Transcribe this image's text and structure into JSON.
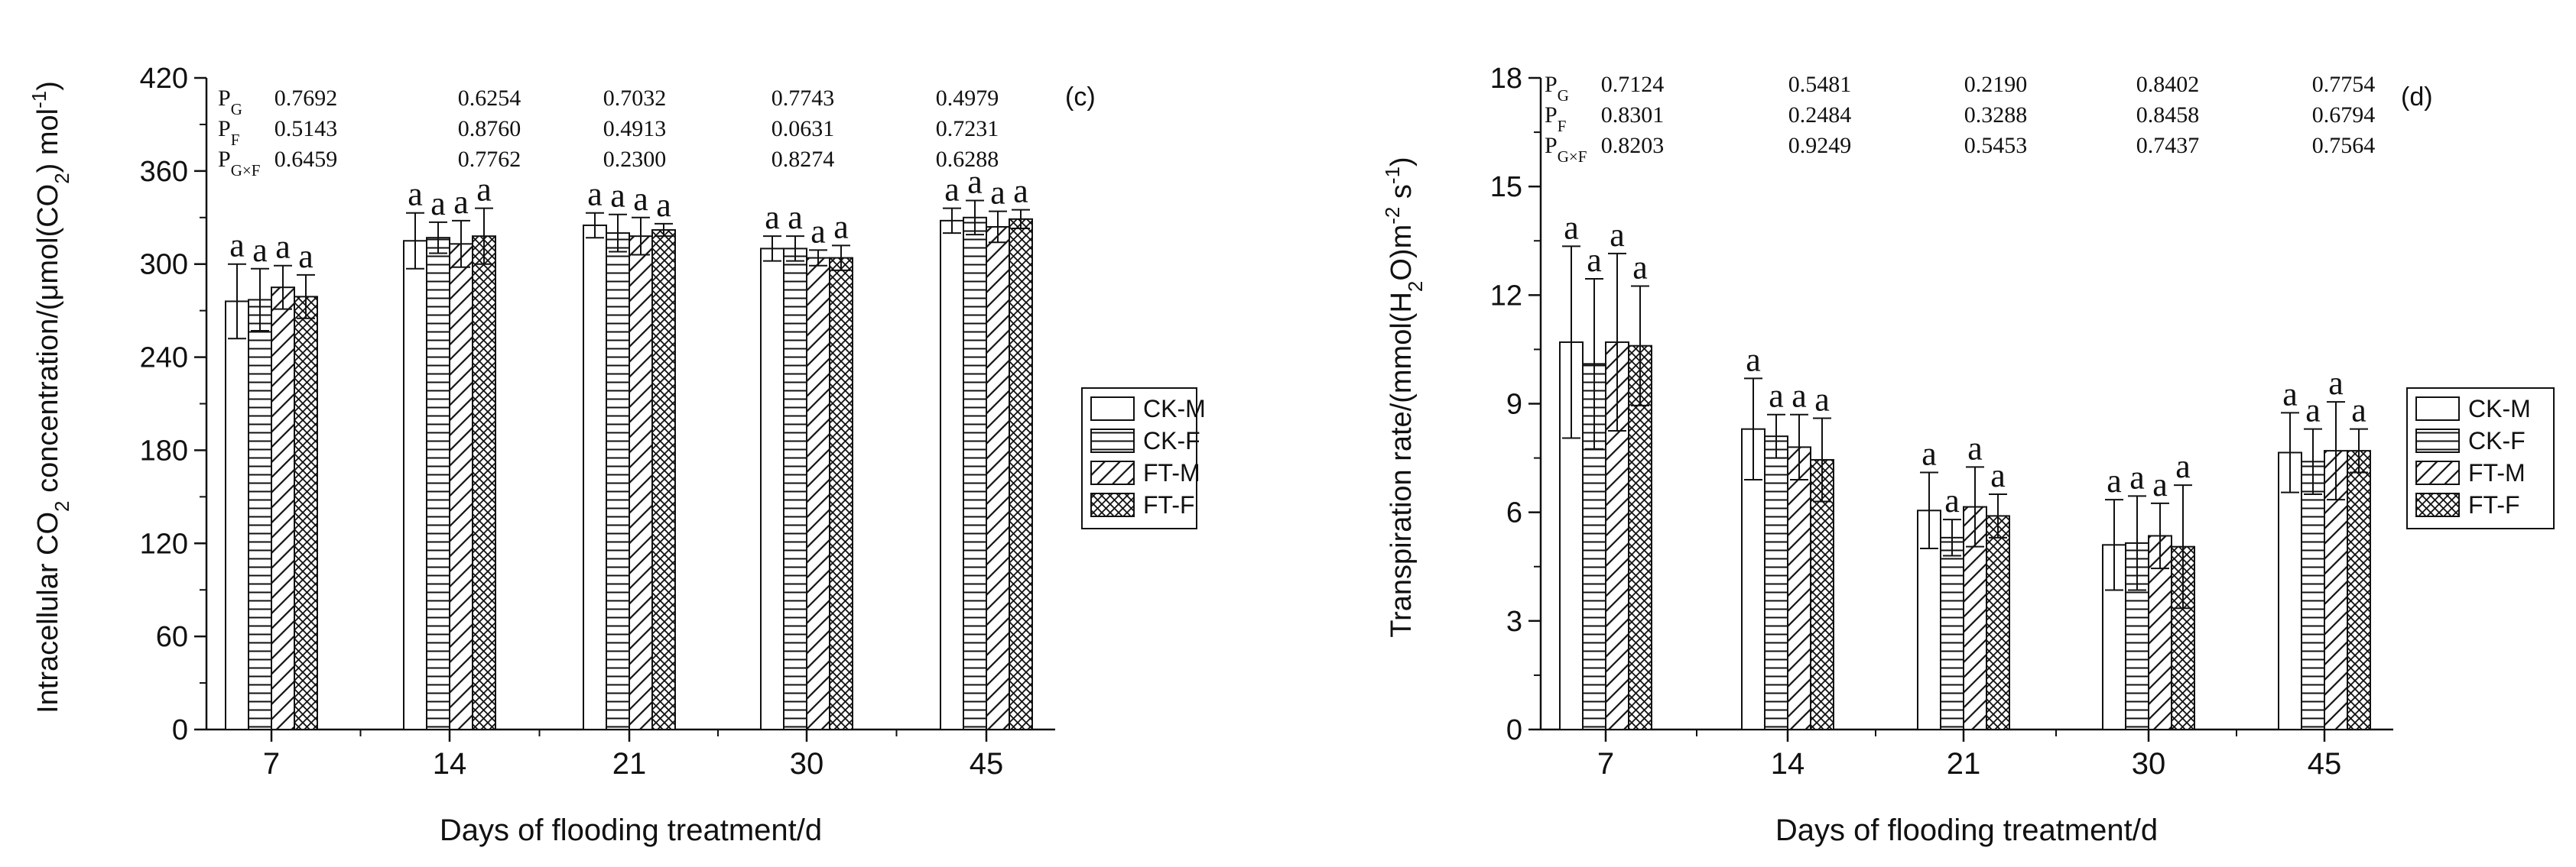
{
  "chart_data": [
    {
      "type": "bar",
      "panel_label": "(c)",
      "categories": [
        "7",
        "14",
        "21",
        "30",
        "45"
      ],
      "xlabel": "Days of flooding treatment/d",
      "ylabel": "Intracellular CO2 concentration/(μmol(CO2) mol-1)",
      "ylim": [
        0,
        420
      ],
      "yticks": [
        "0",
        "60",
        "120",
        "180",
        "240",
        "300",
        "360",
        "420"
      ],
      "series": [
        {
          "name": "CK-M",
          "pattern": "none",
          "values": [
            276,
            315,
            325,
            310,
            328
          ],
          "errors": [
            24,
            18,
            8,
            8,
            8
          ]
        },
        {
          "name": "CK-F",
          "pattern": "horizontal",
          "values": [
            277,
            317,
            320,
            310,
            330
          ],
          "errors": [
            20,
            10,
            12,
            8,
            11
          ]
        },
        {
          "name": "FT-M",
          "pattern": "diagonal",
          "values": [
            285,
            313,
            318,
            304,
            324
          ],
          "errors": [
            14,
            15,
            12,
            5,
            10
          ]
        },
        {
          "name": "FT-F",
          "pattern": "crosshatch",
          "values": [
            279,
            318,
            322,
            304,
            329
          ],
          "errors": [
            14,
            18,
            4,
            8,
            6
          ]
        }
      ],
      "bar_letters": [
        [
          "a",
          "a",
          "a",
          "a"
        ],
        [
          "a",
          "a",
          "a",
          "a"
        ],
        [
          "a",
          "a",
          "a",
          "a"
        ],
        [
          "a",
          "a",
          "a",
          "a"
        ],
        [
          "a",
          "a",
          "a",
          "a"
        ]
      ],
      "stats_rows": [
        {
          "label": "PG",
          "values": [
            "0.7692",
            "0.6254",
            "0.7032",
            "0.7743",
            "0.4979"
          ]
        },
        {
          "label": "PF",
          "values": [
            "0.5143",
            "0.8760",
            "0.4913",
            "0.0631",
            "0.7231"
          ]
        },
        {
          "label": "PG×F",
          "values": [
            "0.6459",
            "0.7762",
            "0.2300",
            "0.8274",
            "0.6288"
          ]
        }
      ],
      "legend": [
        "CK-M",
        "CK-F",
        "FT-M",
        "FT-F"
      ],
      "legend_position": "right"
    },
    {
      "type": "bar",
      "panel_label": "(d)",
      "categories": [
        "7",
        "14",
        "21",
        "30",
        "45"
      ],
      "xlabel": "Days of flooding treatment/d",
      "ylabel": "Transpiration rate/(mmol(H2O)m-2 s-1)",
      "ylim": [
        0,
        18
      ],
      "yticks": [
        "0",
        "3",
        "6",
        "9",
        "12",
        "15",
        "18"
      ],
      "series": [
        {
          "name": "CK-M",
          "pattern": "none",
          "values": [
            10.7,
            8.3,
            6.05,
            5.1,
            7.65
          ],
          "errors": [
            2.65,
            1.4,
            1.05,
            1.25,
            1.1
          ]
        },
        {
          "name": "CK-F",
          "pattern": "horizontal",
          "values": [
            10.1,
            8.1,
            5.3,
            5.15,
            7.4
          ],
          "errors": [
            2.35,
            0.6,
            0.5,
            1.3,
            0.9
          ]
        },
        {
          "name": "FT-M",
          "pattern": "diagonal",
          "values": [
            10.7,
            7.8,
            6.15,
            5.35,
            7.7
          ],
          "errors": [
            2.45,
            0.9,
            1.1,
            0.9,
            1.35
          ]
        },
        {
          "name": "FT-F",
          "pattern": "crosshatch",
          "values": [
            10.6,
            7.45,
            5.9,
            5.05,
            7.7
          ],
          "errors": [
            1.65,
            1.15,
            0.6,
            1.7,
            0.6
          ]
        }
      ],
      "bar_letters": [
        [
          "a",
          "a",
          "a",
          "a"
        ],
        [
          "a",
          "a",
          "a",
          "a"
        ],
        [
          "a",
          "a",
          "a",
          "a"
        ],
        [
          "a",
          "a",
          "a",
          "a"
        ],
        [
          "a",
          "a",
          "a",
          "a"
        ]
      ],
      "stats_rows": [
        {
          "label": "PG",
          "values": [
            "0.7124",
            "0.5481",
            "0.2190",
            "0.8402",
            "0.7754"
          ]
        },
        {
          "label": "PF",
          "values": [
            "0.8301",
            "0.2484",
            "0.3288",
            "0.8458",
            "0.6794"
          ]
        },
        {
          "label": "PG×F",
          "values": [
            "0.8203",
            "0.9249",
            "0.5453",
            "0.7437",
            "0.7564"
          ]
        }
      ],
      "legend": [
        "CK-M",
        "CK-F",
        "FT-M",
        "FT-F"
      ],
      "legend_position": "right"
    }
  ]
}
